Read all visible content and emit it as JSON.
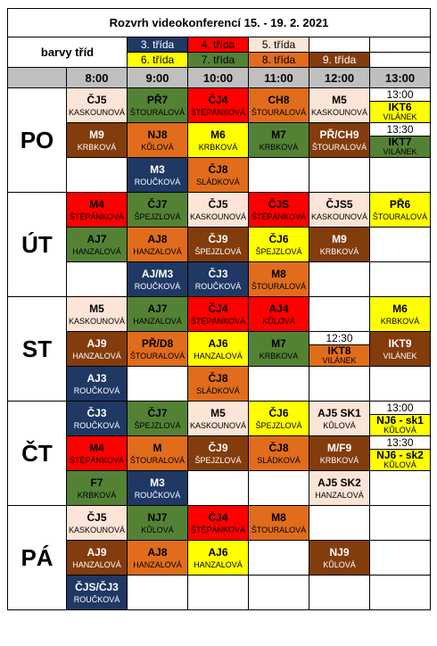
{
  "title": "Rozvrh videokonferencí 15. - 19. 2. 2021",
  "legend": {
    "label": "barvy tříd",
    "classes": [
      "3. třída",
      "4. třída",
      "5. třída",
      "6. třída",
      "7. třída",
      "8. třída",
      "9. třída"
    ]
  },
  "colors": {
    "3": "#1f3864",
    "4": "#ff0000",
    "5": "#fce4d6",
    "6": "#ffff00",
    "7": "#548235",
    "8": "#e06c1c",
    "9": "#833c0b"
  },
  "times": [
    "8:00",
    "9:00",
    "10:00",
    "11:00",
    "12:00",
    "13:00"
  ],
  "days": [
    {
      "name": "PO",
      "rows": [
        [
          {
            "s": "ČJ5",
            "t": "KASKOUNOVÁ",
            "c": "5"
          },
          {
            "s": "PŘ7",
            "t": "ŠTOURALOVÁ",
            "c": "7"
          },
          {
            "s": "ČJ4",
            "t": "ŠTĚPÁNKOVÁ",
            "c": "4"
          },
          {
            "s": "CH8",
            "t": "ŠTOURALOVÁ",
            "c": "8"
          },
          {
            "s": "M5",
            "t": "KASKOUNOVÁ",
            "c": "5"
          },
          {
            "time": "13:00",
            "s": "IKT6",
            "t": "VILÁNEK",
            "c": "6"
          }
        ],
        [
          {
            "s": "M9",
            "t": "KRBKOVÁ",
            "c": "9"
          },
          {
            "s": "NJ8",
            "t": "KŮLOVÁ",
            "c": "8"
          },
          {
            "s": "M6",
            "t": "KRBKOVÁ",
            "c": "6"
          },
          {
            "s": "M7",
            "t": "KRBKOVÁ",
            "c": "7"
          },
          {
            "s": "PŘ/CH9",
            "t": "ŠTOURALOVÁ",
            "c": "9"
          },
          {
            "time": "13:30",
            "s": "IKT7",
            "t": "VILÁNEK",
            "c": "7"
          }
        ],
        [
          null,
          {
            "s": "M3",
            "t": "ROUČKOVÁ",
            "c": "3"
          },
          {
            "s": "ČJ8",
            "t": "SLÁDKOVÁ",
            "c": "8"
          },
          null,
          null,
          null
        ]
      ]
    },
    {
      "name": "ÚT",
      "rows": [
        [
          {
            "s": "M4",
            "t": "ŠTĚPÁNKOVÁ",
            "c": "4"
          },
          {
            "s": "ČJ7",
            "t": "ŠPEJZLOVÁ",
            "c": "7"
          },
          {
            "s": "ČJ5",
            "t": "KASKOUNOVÁ",
            "c": "5"
          },
          {
            "s": "ČJS",
            "t": "ŠTĚPÁNKOVÁ",
            "c": "4"
          },
          {
            "s": "ČJS5",
            "t": "KASKOUNOVÁ",
            "c": "5"
          },
          {
            "s": "PŘ6",
            "t": "ŠTOURALOVÁ",
            "c": "6"
          }
        ],
        [
          {
            "s": "AJ7",
            "t": "HANZALOVÁ",
            "c": "7"
          },
          {
            "s": "AJ8",
            "t": "HANZALOVÁ",
            "c": "8"
          },
          {
            "s": "ČJ9",
            "t": "ŠPEJZLOVÁ",
            "c": "9"
          },
          {
            "s": "ČJ6",
            "t": "ŠPEJZLOVÁ",
            "c": "6"
          },
          {
            "s": "M9",
            "t": "KRBKOVÁ",
            "c": "9"
          },
          null
        ],
        [
          null,
          {
            "s": "AJ/M3",
            "t": "ROUČKOVÁ",
            "c": "3"
          },
          {
            "s": "ČJ3",
            "t": "ROUČKOVÁ",
            "c": "3"
          },
          {
            "s": "M8",
            "t": "ŠTOURALOVÁ",
            "c": "8"
          },
          null,
          null
        ]
      ]
    },
    {
      "name": "ST",
      "rows": [
        [
          {
            "s": "M5",
            "t": "KASKOUNOVÁ",
            "c": "5"
          },
          {
            "s": "AJ7",
            "t": "HANZALOVÁ",
            "c": "7"
          },
          {
            "s": "ČJ4",
            "t": "ŠTĚPÁNKOVÁ",
            "c": "4"
          },
          {
            "s": "AJ4",
            "t": "KŮLOVÁ",
            "c": "4"
          },
          null,
          {
            "s": "M6",
            "t": "KRBKOVÁ",
            "c": "6"
          }
        ],
        [
          {
            "s": "AJ9",
            "t": "HANZALOVÁ",
            "c": "9"
          },
          {
            "s": "PŘ/D8",
            "t": "ŠTOURALOVÁ",
            "c": "8"
          },
          {
            "s": "AJ6",
            "t": "HANZALOVÁ",
            "c": "6"
          },
          {
            "s": "M7",
            "t": "KRBKOVÁ",
            "c": "7"
          },
          {
            "time": "12:30",
            "s": "IKT8",
            "t": "VILÁNEK",
            "c": "8"
          },
          {
            "s": "IKT9",
            "t": "VILÁNEK",
            "c": "9"
          }
        ],
        [
          {
            "s": "AJ3",
            "t": "ROUČKOVÁ",
            "c": "3"
          },
          null,
          {
            "s": "ČJ8",
            "t": "SLÁDKOVÁ",
            "c": "8"
          },
          null,
          null,
          null
        ]
      ]
    },
    {
      "name": "ČT",
      "rows": [
        [
          {
            "s": "ČJ3",
            "t": "ROUČKOVÁ",
            "c": "3"
          },
          {
            "s": "ČJ7",
            "t": "ŠPEJZLOVÁ",
            "c": "7"
          },
          {
            "s": "M5",
            "t": "KASKOUNOVÁ",
            "c": "5"
          },
          {
            "s": "ČJ6",
            "t": "ŠPEJZLOVÁ",
            "c": "6"
          },
          {
            "s": "AJ5 SK1",
            "t": "KŮLOVÁ",
            "c": "5"
          },
          {
            "time": "13:00",
            "s": "NJ6 - sk1",
            "t": "KŮLOVÁ",
            "c": "6"
          }
        ],
        [
          {
            "s": "M4",
            "t": "ŠTĚPÁNKOVÁ",
            "c": "4"
          },
          {
            "s": "M",
            "t": "ŠTOURALOVÁ",
            "c": "8"
          },
          {
            "s": "ČJ9",
            "t": "ŠPEJZLOVÁ",
            "c": "9"
          },
          {
            "s": "ČJ8",
            "t": "SLÁDKOVÁ",
            "c": "8"
          },
          {
            "s": "M/F9",
            "t": "KRBKOVÁ",
            "c": "9"
          },
          {
            "time": "13:30",
            "s": "NJ6 - sk2",
            "t": "KŮLOVÁ",
            "c": "6"
          }
        ],
        [
          {
            "s": "F7",
            "t": "KRBKOVÁ",
            "c": "7"
          },
          {
            "s": "M3",
            "t": "ROUČKOVÁ",
            "c": "3"
          },
          null,
          null,
          {
            "s": "AJ5 SK2",
            "t": "HANZALOVÁ",
            "c": "5"
          },
          null
        ]
      ]
    },
    {
      "name": "PÁ",
      "rows": [
        [
          {
            "s": "ČJ5",
            "t": "KASKOUNOVÁ",
            "c": "5"
          },
          {
            "s": "NJ7",
            "t": "KŮLOVÁ",
            "c": "7"
          },
          {
            "s": "ČJ4",
            "t": "ŠTĚPÁNKOVÁ",
            "c": "4"
          },
          {
            "s": "M8",
            "t": "ŠTOURALOVÁ",
            "c": "8"
          },
          null,
          null
        ],
        [
          {
            "s": "AJ9",
            "t": "HANZALOVÁ",
            "c": "9"
          },
          {
            "s": "AJ8",
            "t": "HANZALOVÁ",
            "c": "8"
          },
          {
            "s": "AJ6",
            "t": "HANZALOVÁ",
            "c": "6"
          },
          null,
          {
            "s": "NJ9",
            "t": "KŮLOVÁ",
            "c": "9"
          },
          null
        ],
        [
          {
            "s": "ČJS/ČJ3",
            "t": "ROUČKOVÁ",
            "c": "3"
          },
          null,
          null,
          null,
          null,
          null
        ]
      ]
    }
  ]
}
